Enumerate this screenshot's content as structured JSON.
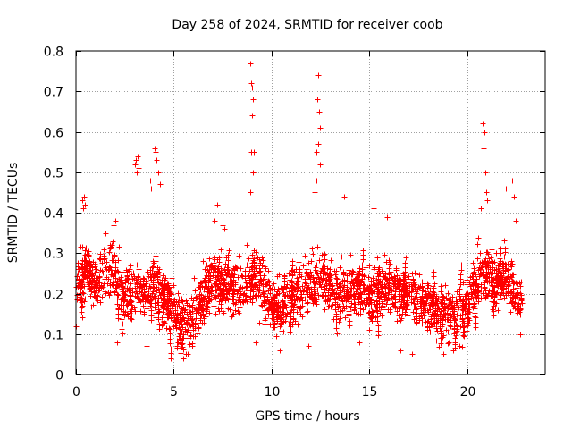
{
  "chart_data": {
    "type": "scatter",
    "title": "Day 258 of 2024, SRMTID for receiver coob",
    "xlabel": "GPS time / hours",
    "ylabel": "SRMTID / TECUs",
    "xlim": [
      0,
      24
    ],
    "ylim": [
      0,
      0.8
    ],
    "x_ticks": [
      0,
      5,
      10,
      15,
      20
    ],
    "x_tick_labels": [
      "0",
      "5",
      "10",
      "15",
      "20"
    ],
    "y_ticks": [
      0,
      0.1,
      0.2,
      0.3,
      0.4,
      0.5,
      0.6,
      0.7,
      0.8
    ],
    "y_tick_labels": [
      "0",
      "0.1",
      "0.2",
      "0.3",
      "0.4",
      "0.5",
      "0.6",
      "0.7",
      "0.8"
    ],
    "grid": true,
    "marker": "+",
    "marker_color": "#ff0000",
    "x_data_end": 22.8,
    "baseline_profile": [
      [
        0.0,
        0.22
      ],
      [
        0.5,
        0.26
      ],
      [
        1.0,
        0.22
      ],
      [
        1.5,
        0.26
      ],
      [
        2.0,
        0.24
      ],
      [
        2.5,
        0.2
      ],
      [
        3.0,
        0.22
      ],
      [
        3.5,
        0.2
      ],
      [
        4.0,
        0.24
      ],
      [
        4.5,
        0.18
      ],
      [
        5.0,
        0.16
      ],
      [
        5.5,
        0.13
      ],
      [
        6.0,
        0.14
      ],
      [
        6.5,
        0.2
      ],
      [
        7.0,
        0.24
      ],
      [
        7.5,
        0.22
      ],
      [
        8.0,
        0.21
      ],
      [
        8.5,
        0.22
      ],
      [
        9.0,
        0.24
      ],
      [
        9.5,
        0.23
      ],
      [
        10.0,
        0.17
      ],
      [
        10.5,
        0.17
      ],
      [
        11.0,
        0.2
      ],
      [
        11.5,
        0.2
      ],
      [
        12.0,
        0.22
      ],
      [
        12.5,
        0.24
      ],
      [
        13.0,
        0.21
      ],
      [
        13.5,
        0.2
      ],
      [
        14.0,
        0.22
      ],
      [
        14.5,
        0.21
      ],
      [
        15.0,
        0.2
      ],
      [
        15.5,
        0.21
      ],
      [
        16.0,
        0.22
      ],
      [
        16.5,
        0.2
      ],
      [
        17.0,
        0.21
      ],
      [
        17.5,
        0.19
      ],
      [
        18.0,
        0.17
      ],
      [
        18.5,
        0.15
      ],
      [
        19.0,
        0.15
      ],
      [
        19.5,
        0.14
      ],
      [
        20.0,
        0.17
      ],
      [
        20.5,
        0.24
      ],
      [
        21.0,
        0.25
      ],
      [
        21.5,
        0.23
      ],
      [
        22.0,
        0.24
      ],
      [
        22.5,
        0.2
      ],
      [
        22.8,
        0.18
      ]
    ],
    "peak_points": [
      [
        0.3,
        0.43
      ],
      [
        0.35,
        0.41
      ],
      [
        0.4,
        0.44
      ],
      [
        0.45,
        0.42
      ],
      [
        1.5,
        0.35
      ],
      [
        1.9,
        0.37
      ],
      [
        2.0,
        0.38
      ],
      [
        3.0,
        0.52
      ],
      [
        3.05,
        0.53
      ],
      [
        3.1,
        0.5
      ],
      [
        3.15,
        0.54
      ],
      [
        3.2,
        0.51
      ],
      [
        3.8,
        0.48
      ],
      [
        3.85,
        0.46
      ],
      [
        4.0,
        0.56
      ],
      [
        4.05,
        0.55
      ],
      [
        4.1,
        0.53
      ],
      [
        4.2,
        0.5
      ],
      [
        4.3,
        0.47
      ],
      [
        7.1,
        0.38
      ],
      [
        7.2,
        0.42
      ],
      [
        7.5,
        0.37
      ],
      [
        7.6,
        0.36
      ],
      [
        8.9,
        0.77
      ],
      [
        8.95,
        0.72
      ],
      [
        9.0,
        0.71
      ],
      [
        9.05,
        0.68
      ],
      [
        9.0,
        0.64
      ],
      [
        8.95,
        0.55
      ],
      [
        9.1,
        0.55
      ],
      [
        9.05,
        0.5
      ],
      [
        8.9,
        0.45
      ],
      [
        12.2,
        0.45
      ],
      [
        12.3,
        0.55
      ],
      [
        12.4,
        0.74
      ],
      [
        12.35,
        0.68
      ],
      [
        12.45,
        0.65
      ],
      [
        12.5,
        0.61
      ],
      [
        12.4,
        0.57
      ],
      [
        12.5,
        0.52
      ],
      [
        12.3,
        0.48
      ],
      [
        13.7,
        0.44
      ],
      [
        15.2,
        0.41
      ],
      [
        15.9,
        0.39
      ],
      [
        20.8,
        0.62
      ],
      [
        20.9,
        0.6
      ],
      [
        20.85,
        0.56
      ],
      [
        20.95,
        0.5
      ],
      [
        21.0,
        0.45
      ],
      [
        20.7,
        0.41
      ],
      [
        21.05,
        0.43
      ],
      [
        22.0,
        0.46
      ],
      [
        22.3,
        0.48
      ],
      [
        22.4,
        0.44
      ],
      [
        22.5,
        0.38
      ]
    ],
    "low_points": [
      [
        0.0,
        0.12
      ],
      [
        2.1,
        0.08
      ],
      [
        3.6,
        0.07
      ],
      [
        5.5,
        0.04
      ],
      [
        5.6,
        0.05
      ],
      [
        5.7,
        0.05
      ],
      [
        9.2,
        0.08
      ],
      [
        10.4,
        0.06
      ],
      [
        11.9,
        0.07
      ],
      [
        14.5,
        0.08
      ],
      [
        16.6,
        0.06
      ],
      [
        17.2,
        0.05
      ],
      [
        18.8,
        0.05
      ],
      [
        19.3,
        0.06
      ],
      [
        19.6,
        0.07
      ],
      [
        22.7,
        0.1
      ]
    ]
  }
}
